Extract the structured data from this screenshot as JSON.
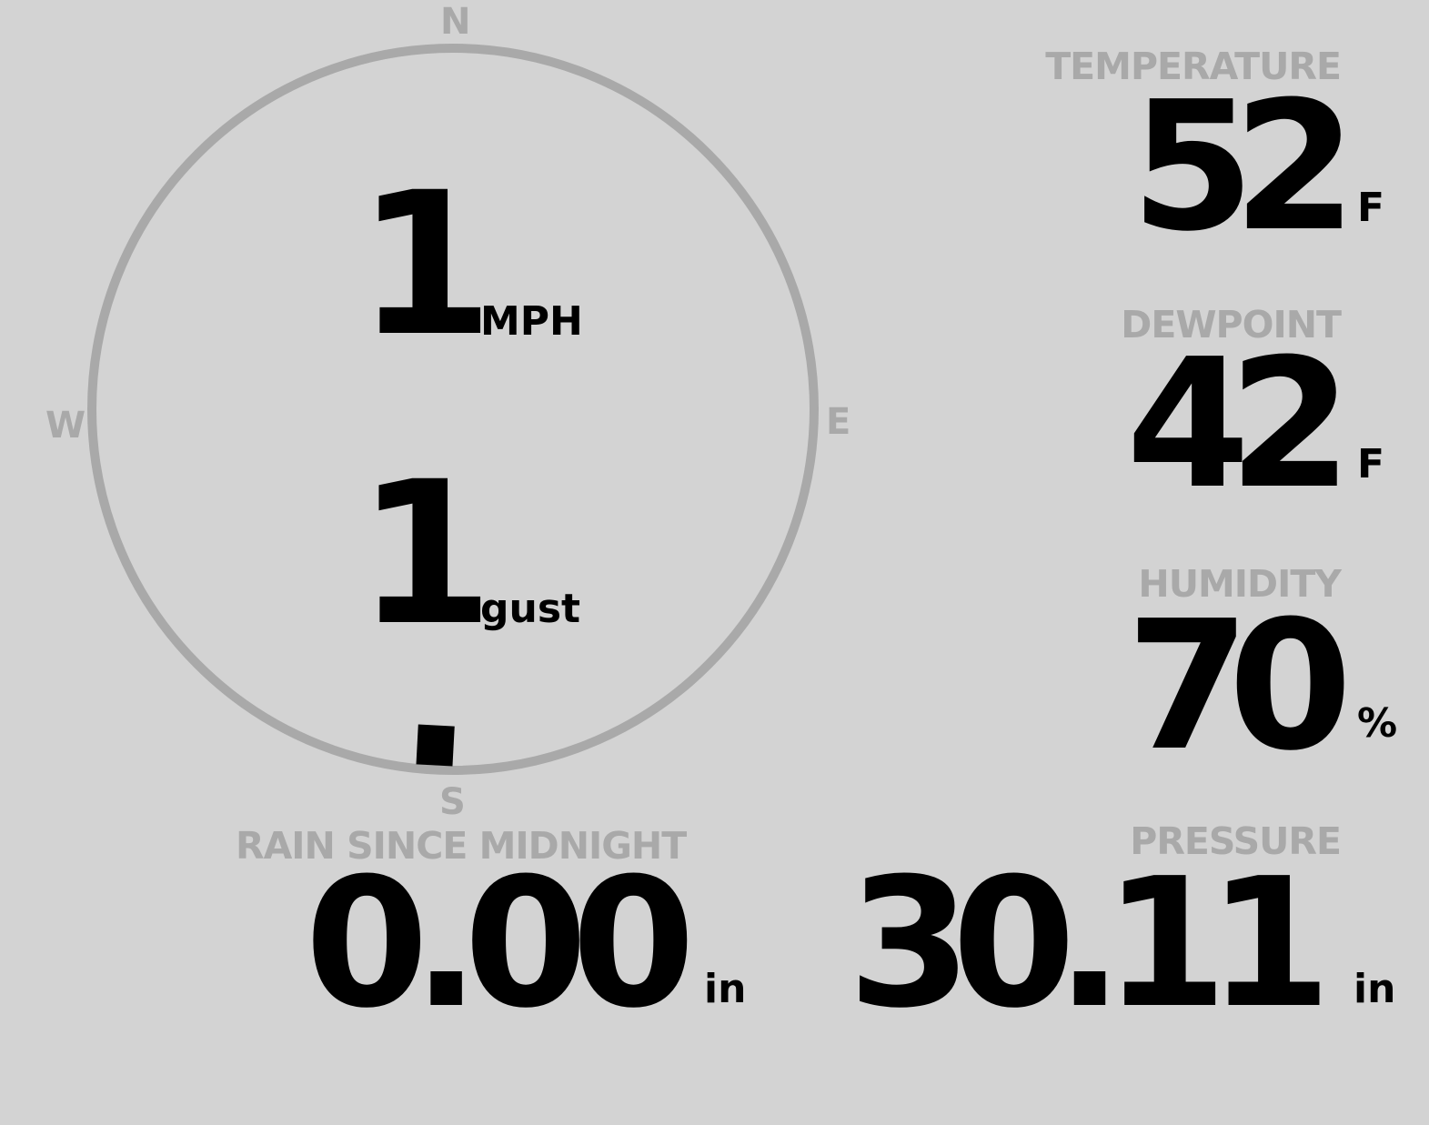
{
  "wind": {
    "compass": {
      "n": "N",
      "e": "E",
      "s": "S",
      "w": "W"
    },
    "speed": "1",
    "speed_unit": "MPH",
    "gust": "1",
    "gust_unit": "gust",
    "direction_deg": 183
  },
  "temperature": {
    "label": "TEMPERATURE",
    "value": "52",
    "unit": "F"
  },
  "dewpoint": {
    "label": "DEWPOINT",
    "value": "42",
    "unit": "F"
  },
  "humidity": {
    "label": "HUMIDITY",
    "value": "70",
    "unit": "%"
  },
  "pressure": {
    "label": "PRESSURE",
    "value": "30.11",
    "unit": "in"
  },
  "rain": {
    "label": "RAIN SINCE MIDNIGHT",
    "value": "0.00",
    "unit": "in"
  },
  "colors": {
    "background": "#d3d3d3",
    "label": "#a9a9a9",
    "value": "#000000"
  }
}
